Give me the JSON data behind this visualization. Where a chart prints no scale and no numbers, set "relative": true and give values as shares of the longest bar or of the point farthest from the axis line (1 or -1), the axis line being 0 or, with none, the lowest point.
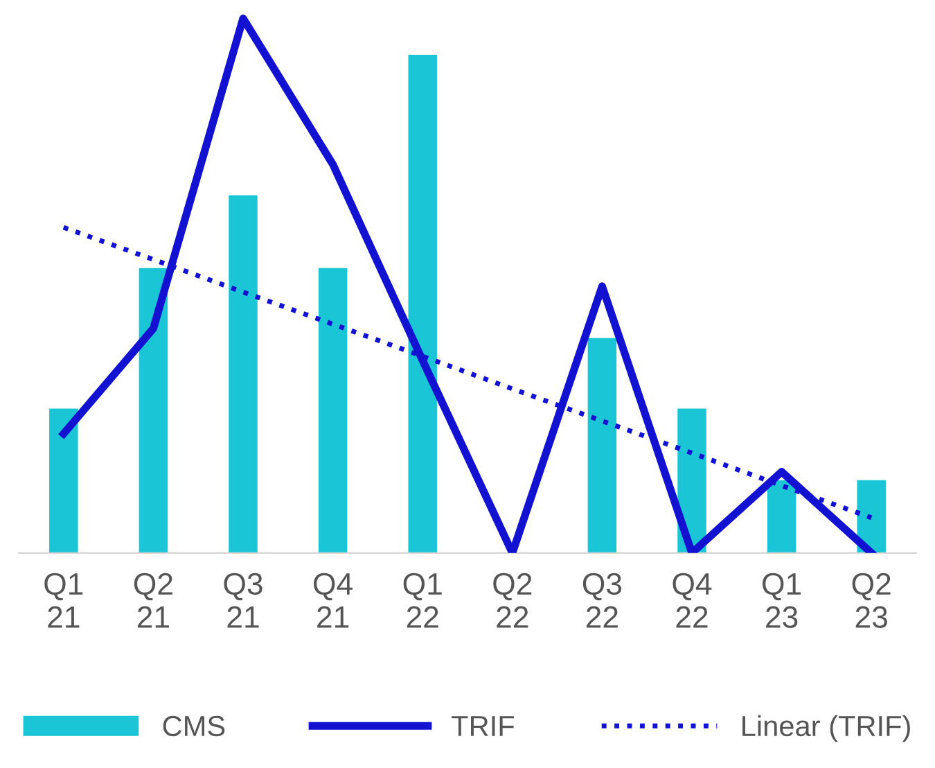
{
  "chart_data": {
    "type": "bar",
    "relative": true,
    "categories": [
      "Q1\n21",
      "Q2\n21",
      "Q3\n21",
      "Q4\n21",
      "Q1\n22",
      "Q2\n22",
      "Q3\n22",
      "Q4\n22",
      "Q1\n23",
      "Q2\n23"
    ],
    "legend": "bottom",
    "grid": false,
    "series": [
      {
        "name": "CMS",
        "color": "#1ac6d6",
        "values": [
          0.27,
          0.533,
          0.669,
          0.533,
          0.932,
          0,
          0.402,
          0.27,
          0.136,
          0.136
        ]
      },
      {
        "name": "TRIF",
        "type": "line",
        "color": "#1212d0",
        "line_style": "solid",
        "values": [
          0.223,
          0.42,
          1,
          0.727,
          0.36,
          0,
          0.499,
          0,
          0.152,
          0
        ]
      },
      {
        "name": "Linear (TRIF)",
        "type": "line",
        "color": "#1212d0",
        "line_style": "dotted",
        "values": [
          0.609,
          0.549,
          0.488,
          0.428,
          0.368,
          0.307,
          0.247,
          0.187,
          0.126,
          0.066
        ]
      }
    ]
  }
}
